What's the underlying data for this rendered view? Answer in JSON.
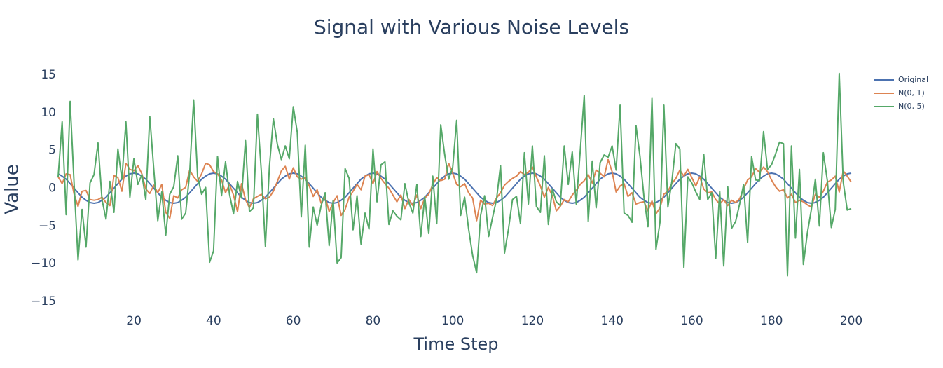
{
  "chart_data": {
    "type": "line",
    "title": "Signal with Various Noise Levels",
    "x_label": "Time Step",
    "y_label": "Value",
    "x": [
      1,
      2,
      3,
      4,
      5,
      6,
      7,
      8,
      9,
      10,
      11,
      12,
      13,
      14,
      15,
      16,
      17,
      18,
      19,
      20,
      21,
      22,
      23,
      24,
      25,
      26,
      27,
      28,
      29,
      30,
      31,
      32,
      33,
      34,
      35,
      36,
      37,
      38,
      39,
      40,
      41,
      42,
      43,
      44,
      45,
      46,
      47,
      48,
      49,
      50,
      51,
      52,
      53,
      54,
      55,
      56,
      57,
      58,
      59,
      60,
      61,
      62,
      63,
      64,
      65,
      66,
      67,
      68,
      69,
      70,
      71,
      72,
      73,
      74,
      75,
      76,
      77,
      78,
      79,
      80,
      81,
      82,
      83,
      84,
      85,
      86,
      87,
      88,
      89,
      90,
      91,
      92,
      93,
      94,
      95,
      96,
      97,
      98,
      99,
      100,
      101,
      102,
      103,
      104,
      105,
      106,
      107,
      108,
      109,
      110,
      111,
      112,
      113,
      114,
      115,
      116,
      117,
      118,
      119,
      120,
      121,
      122,
      123,
      124,
      125,
      126,
      127,
      128,
      129,
      130,
      131,
      132,
      133,
      134,
      135,
      136,
      137,
      138,
      139,
      140,
      141,
      142,
      143,
      144,
      145,
      146,
      147,
      148,
      149,
      150,
      151,
      152,
      153,
      154,
      155,
      156,
      157,
      158,
      159,
      160,
      161,
      162,
      163,
      164,
      165,
      166,
      167,
      168,
      169,
      170,
      171,
      172,
      173,
      174,
      175,
      176,
      177,
      178,
      179,
      180,
      181,
      182,
      183,
      184,
      185,
      186,
      187,
      188,
      189,
      190,
      191,
      192,
      193,
      194,
      195,
      196,
      197,
      198,
      199,
      200
    ],
    "series": [
      {
        "name": "Original",
        "color": "#4c72b0",
        "values": [
          1.9,
          1.6,
          1.2,
          0.6,
          0,
          -0.6,
          -1.2,
          -1.6,
          -1.9,
          -2,
          -1.9,
          -1.6,
          -1.2,
          -0.6,
          0,
          0.6,
          1.2,
          1.6,
          1.9,
          2,
          1.9,
          1.6,
          1.2,
          0.6,
          0,
          -0.6,
          -1.2,
          -1.6,
          -1.9,
          -2,
          -1.9,
          -1.6,
          -1.2,
          -0.6,
          0,
          0.6,
          1.2,
          1.6,
          1.9,
          2,
          1.9,
          1.6,
          1.2,
          0.6,
          0,
          -0.6,
          -1.2,
          -1.6,
          -1.9,
          -2,
          -1.9,
          -1.6,
          -1.2,
          -0.6,
          0,
          0.6,
          1.2,
          1.6,
          1.9,
          2,
          1.9,
          1.6,
          1.2,
          0.6,
          0,
          -0.6,
          -1.2,
          -1.6,
          -1.9,
          -2,
          -1.9,
          -1.6,
          -1.2,
          -0.6,
          0,
          0.6,
          1.2,
          1.6,
          1.9,
          2,
          1.9,
          1.6,
          1.2,
          0.6,
          0,
          -0.6,
          -1.2,
          -1.6,
          -1.9,
          -2,
          -1.9,
          -1.6,
          -1.2,
          -0.6,
          0,
          0.6,
          1.2,
          1.6,
          1.9,
          2,
          1.9,
          1.6,
          1.2,
          0.6,
          0,
          -0.6,
          -1.2,
          -1.6,
          -1.9,
          -2,
          -1.9,
          -1.6,
          -1.2,
          -0.6,
          0,
          0.6,
          1.2,
          1.6,
          1.9,
          2,
          1.9,
          1.6,
          1.2,
          0.6,
          0,
          -0.6,
          -1.2,
          -1.6,
          -1.9,
          -2,
          -1.9,
          -1.6,
          -1.2,
          -0.6,
          0,
          0.6,
          1.2,
          1.6,
          1.9,
          2,
          1.9,
          1.6,
          1.2,
          0.6,
          0,
          -0.6,
          -1.2,
          -1.6,
          -1.9,
          -2,
          -1.9,
          -1.6,
          -1.2,
          -0.6,
          0,
          0.6,
          1.2,
          1.6,
          1.9,
          2,
          1.9,
          1.6,
          1.2,
          0.6,
          0,
          -0.6,
          -1.2,
          -1.6,
          -1.9,
          -2,
          -1.9,
          -1.6,
          -1.2,
          -0.6,
          0,
          0.6,
          1.2,
          1.6,
          1.9,
          2,
          1.9,
          1.6,
          1.2,
          0.6,
          0,
          -0.6,
          -1.2,
          -1.6,
          -1.9,
          -2,
          -1.9,
          -1.6,
          -1.2,
          -0.6,
          0,
          0.6,
          1.2,
          1.6,
          1.9,
          2
        ]
      },
      {
        "name": "N(0, 1)",
        "color": "#dd8452",
        "values": [
          1.5,
          0.6,
          1.9,
          1.8,
          -0.8,
          -2.4,
          -0.4,
          -0.3,
          -1.5,
          -1.6,
          -1.5,
          -1.2,
          -1.9,
          -2.3,
          1.7,
          1.4,
          -0.4,
          3.3,
          2.5,
          2.3,
          3.0,
          1.9,
          -0.1,
          -0.7,
          0.4,
          -0.6,
          0.5,
          -3.2,
          -4.0,
          -1.0,
          -1.3,
          -0.2,
          0.1,
          2.4,
          1.5,
          0.9,
          1.9,
          3.3,
          3.1,
          2.2,
          1.9,
          1.1,
          -0.6,
          0.5,
          -0.9,
          -3.1,
          0.6,
          -1.5,
          -2.6,
          -1.4,
          -1.1,
          -0.8,
          -1.4,
          -1.2,
          -0.4,
          0.9,
          2.3,
          2.9,
          1.2,
          2.7,
          1.5,
          1.2,
          1.4,
          0.3,
          -1.1,
          -0.2,
          -2.0,
          -1.2,
          -3.1,
          -1.9,
          -1.0,
          -3.6,
          -2.8,
          -1.2,
          -0.4,
          0.5,
          -0.2,
          1.6,
          1.8,
          0.6,
          2.2,
          1.3,
          0.6,
          0.0,
          -0.9,
          -1.8,
          -0.9,
          -2.7,
          -1.5,
          -2.3,
          -0.9,
          -2.7,
          -1.3,
          -0.8,
          0.5,
          1.4,
          1.0,
          1.2,
          3.3,
          2.0,
          0.5,
          0.2,
          0.6,
          -0.6,
          -1.3,
          -4.3,
          -1.6,
          -2.1,
          -2.0,
          -2.3,
          -1.3,
          -0.6,
          0.4,
          0.9,
          1.3,
          1.6,
          2.2,
          1.8,
          2.1,
          2.8,
          1.5,
          0.3,
          -1.2,
          0.1,
          -1.0,
          -3.0,
          -2.4,
          -1.5,
          -1.8,
          -0.9,
          -0.3,
          0.5,
          1.0,
          1.8,
          0.7,
          2.4,
          2.0,
          1.5,
          3.8,
          2.2,
          -0.5,
          0.3,
          0.6,
          -1.1,
          -0.6,
          -2.1,
          -1.9,
          -1.8,
          -3.0,
          -1.7,
          -3.4,
          -2.6,
          -0.8,
          -0.4,
          0.6,
          1.3,
          2.4,
          1.6,
          2.5,
          1.4,
          0.3,
          1.5,
          -0.1,
          -0.6,
          -0.5,
          -1.5,
          -2.1,
          -1.5,
          -2.3,
          -1.6,
          -1.9,
          -1.4,
          -0.1,
          1.1,
          1.5,
          2.6,
          2.1,
          2.8,
          2.2,
          1.1,
          0.2,
          -0.4,
          -0.2,
          -1.3,
          -0.8,
          -1.9,
          -1.6,
          -1.8,
          -2.2,
          -2.5,
          -0.8,
          -1.2,
          -0.4,
          0.8,
          1.1,
          1.6,
          -0.5,
          2.3,
          1.6,
          0.8
        ]
      },
      {
        "name": "N(0, 5)",
        "color": "#55a868",
        "values": [
          1.5,
          8.8,
          -3.5,
          11.5,
          0.5,
          -9.5,
          -2.8,
          -7.8,
          0.7,
          1.8,
          6.0,
          -1.5,
          -4.1,
          0.9,
          -3.2,
          5.2,
          1.2,
          8.8,
          -1.2,
          3.9,
          0.5,
          1.8,
          -1.5,
          9.5,
          2.5,
          -4.3,
          -0.5,
          -6.2,
          -0.8,
          0.2,
          4.3,
          -4.1,
          -3.3,
          2.0,
          11.7,
          1.5,
          -0.8,
          0.1,
          -9.8,
          -8.3,
          4.2,
          -1.0,
          3.5,
          -0.8,
          -3.4,
          0.9,
          -1.3,
          6.3,
          -3.1,
          -2.6,
          9.8,
          2.1,
          -7.7,
          2.8,
          9.2,
          5.8,
          3.8,
          5.6,
          3.9,
          10.8,
          7.4,
          -3.8,
          5.7,
          -7.8,
          -2.5,
          -4.9,
          -2.3,
          -0.6,
          -7.6,
          -1.6,
          -9.9,
          -9.2,
          2.6,
          1.3,
          -5.5,
          -1.0,
          -7.4,
          -3.3,
          -5.4,
          5.2,
          -1.8,
          3.1,
          3.5,
          -4.8,
          -3.0,
          -3.7,
          -4.2,
          0.6,
          -1.9,
          -3.3,
          0.5,
          -6.4,
          -1.1,
          -6.0,
          1.6,
          -4.7,
          8.4,
          4.4,
          1.2,
          2.8,
          9.0,
          -3.6,
          -1.2,
          -5.4,
          -8.9,
          -11.2,
          -3.6,
          -1.0,
          -6.4,
          -3.9,
          -1.5,
          3.0,
          -8.6,
          -5.4,
          -1.5,
          -1.1,
          -4.7,
          4.7,
          -2.1,
          5.6,
          -2.4,
          -3.2,
          4.3,
          -4.8,
          -0.1,
          -1.8,
          -2.3,
          5.6,
          0.5,
          4.8,
          -2.1,
          4.9,
          12.3,
          -4.4,
          3.6,
          -2.6,
          3.4,
          4.4,
          4.1,
          5.6,
          2.4,
          11.0,
          -3.3,
          -3.6,
          -4.5,
          8.3,
          4.2,
          -1.2,
          -5.1,
          11.9,
          -8.1,
          -4.5,
          11.0,
          -2.5,
          0.9,
          5.9,
          5.2,
          -10.5,
          1.5,
          0.7,
          -0.5,
          -1.5,
          4.5,
          -1.5,
          -0.6,
          -9.3,
          -0.4,
          -10.3,
          0.2,
          -5.3,
          -4.4,
          -2.1,
          0.5,
          -7.2,
          4.2,
          1.1,
          1.0,
          7.5,
          2.5,
          3.1,
          4.5,
          6.1,
          5.9,
          -11.6,
          5.6,
          -6.6,
          2.5,
          -10.1,
          -5.9,
          -2.8,
          1.2,
          -5.0,
          4.7,
          1.0,
          -5.2,
          -2.8,
          15.2,
          0.8,
          -2.9,
          -2.7
        ]
      }
    ],
    "xlim": [
      1,
      200
    ],
    "xticks": [
      20,
      40,
      60,
      80,
      100,
      120,
      140,
      160,
      180,
      200
    ],
    "ylim": [
      -16.2,
      16.2
    ],
    "yticks": [
      {
        "value": -15,
        "label": "−15"
      },
      {
        "value": -10,
        "label": "−10"
      },
      {
        "value": -5,
        "label": "−5"
      },
      0,
      5,
      10,
      15
    ],
    "grid": false
  }
}
